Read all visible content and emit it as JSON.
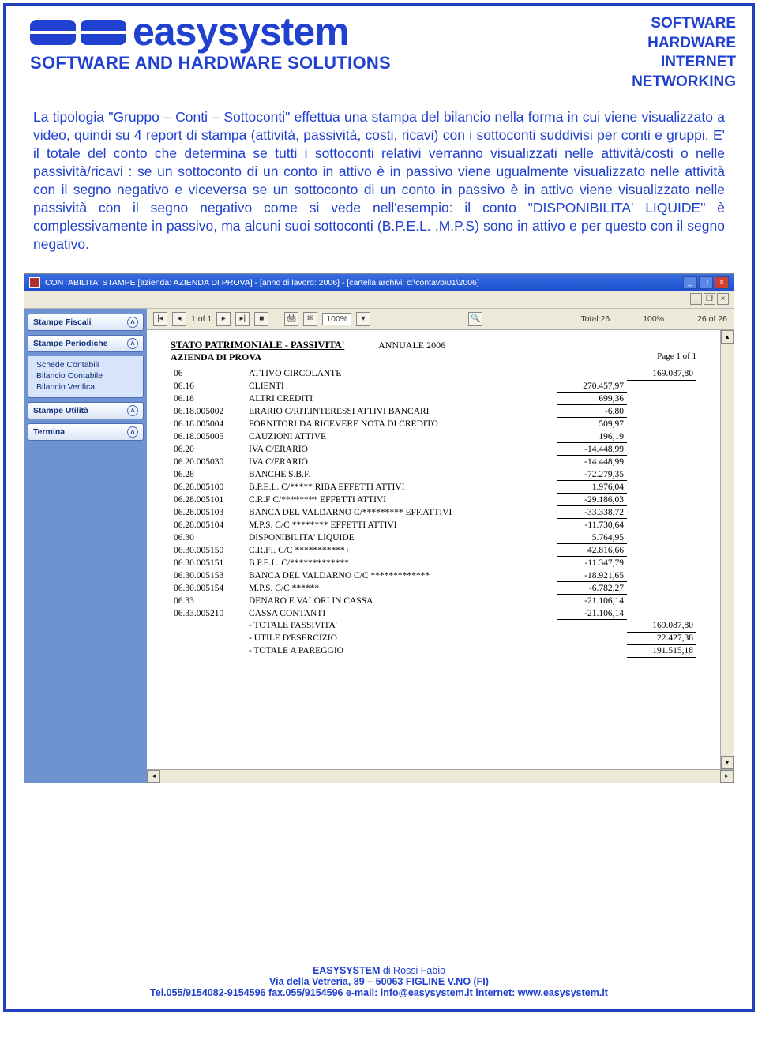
{
  "header": {
    "brand": "easysystem",
    "tagline": "SOFTWARE AND HARDWARE SOLUTIONS",
    "right": [
      "SOFTWARE",
      "HARDWARE",
      "INTERNET",
      "NETWORKING"
    ]
  },
  "paragraph": "La tipologia \"Gruppo – Conti – Sottoconti\" effettua una stampa del bilancio nella forma in cui viene visualizzato a video, quindi su 4 report di stampa (attività, passività, costi, ricavi) con i sottoconti suddivisi per conti e gruppi.\nE' il totale del conto che determina se tutti i sottoconti relativi verranno visualizzati nelle attività/costi o nelle passività/ricavi : se un sottoconto di un conto in attivo è in passivo viene ugualmente visualizzato nelle attività con il segno negativo e viceversa se un sottoconto di un conto in passivo è in attivo viene visualizzato nelle passività con il segno negativo come si vede nell'esempio: il conto \"DISPONIBILITA' LIQUIDE\" è complessivamente in passivo, ma alcuni suoi sottoconti (B.P.E.L. ,M.P.S) sono in attivo e per questo con il segno negativo.",
  "app": {
    "title": "CONTABILITA' STAMPE [azienda: AZIENDA DI PROVA] - [anno di lavoro: 2006] - [cartella archivi: c:\\contavb\\01\\2006]",
    "toolbar": {
      "page_of": "1 of 1",
      "zoom": "100%",
      "total_label": "Total:26",
      "pct": "100%",
      "of": "26 of 26"
    },
    "sidebar": {
      "groups": [
        {
          "title": "Stampe Fiscali",
          "items": []
        },
        {
          "title": "Stampe Periodiche",
          "items": [
            "Schede Contabili",
            "Bilancio Contabile",
            "Bilancio Verifica"
          ]
        },
        {
          "title": "Stampe Utilità",
          "items": []
        },
        {
          "title": "Termina",
          "items": []
        }
      ]
    },
    "report": {
      "heading": "STATO PATRIMONIALE - PASSIVITA'",
      "year": "ANNUALE 2006",
      "company": "AZIENDA DI PROVA",
      "pageno": "Page 1 of 1",
      "rows": [
        {
          "code": "06",
          "desc": "ATTIVO CIRCOLANTE",
          "v1": "",
          "v2": "169.087,80",
          "u1": false,
          "u2": true
        },
        {
          "code": "06.16",
          "desc": "CLIENTI",
          "v1": "",
          "v2": "270.457,97",
          "u1": false,
          "u2": true,
          "shift": true
        },
        {
          "code": "06.18",
          "desc": "ALTRI CREDITI",
          "v1": "",
          "v2": "699,36",
          "u1": false,
          "u2": true,
          "shift": true
        },
        {
          "code": "06.18.005002",
          "desc": "ERARIO C/RIT.INTERESSI ATTIVI BANCARI",
          "v1": "-6,80",
          "v2": "",
          "u1": true,
          "u2": false
        },
        {
          "code": "06.18.005004",
          "desc": "FORNITORI DA RICEVERE NOTA DI CREDITO",
          "v1": "509,97",
          "v2": "",
          "u1": true,
          "u2": false
        },
        {
          "code": "06.18.005005",
          "desc": "CAUZIONI ATTIVE",
          "v1": "196,19",
          "v2": "",
          "u1": true,
          "u2": false
        },
        {
          "code": "06.20",
          "desc": "IVA C/ERARIO",
          "v1": "",
          "v2": "-14.448,99",
          "u1": false,
          "u2": true,
          "shift": true
        },
        {
          "code": "06.20.005030",
          "desc": "IVA C/ERARIO",
          "v1": "-14.448,99",
          "v2": "",
          "u1": true,
          "u2": false
        },
        {
          "code": "06.28",
          "desc": "BANCHE S.B.F.",
          "v1": "",
          "v2": "-72.279,35",
          "u1": false,
          "u2": true,
          "shift": true
        },
        {
          "code": "06.28.005100",
          "desc": "B.P.E.L. C/***** RIBA EFFETTI ATTIVI",
          "v1": "1.976,04",
          "v2": "",
          "u1": true,
          "u2": false
        },
        {
          "code": "06.28.005101",
          "desc": "C.R.F C/******** EFFETTI ATTIVI",
          "v1": "-29.186,03",
          "v2": "",
          "u1": true,
          "u2": false
        },
        {
          "code": "06.28.005103",
          "desc": "BANCA DEL VALDARNO C/********* EFF.ATTIVI",
          "v1": "-33.338,72",
          "v2": "",
          "u1": true,
          "u2": false
        },
        {
          "code": "06.28.005104",
          "desc": "M.P.S. C/C ******** EFFETTI ATTIVI",
          "v1": "-11.730,64",
          "v2": "",
          "u1": true,
          "u2": false
        },
        {
          "code": "06.30",
          "desc": "DISPONIBILITA' LIQUIDE",
          "v1": "",
          "v2": "5.764,95",
          "u1": false,
          "u2": true,
          "shift": true
        },
        {
          "code": "06.30.005150",
          "desc": "C.R.FI. C/C ***********+",
          "v1": "42.816,66",
          "v2": "",
          "u1": true,
          "u2": false
        },
        {
          "code": "06.30.005151",
          "desc": "B.P.E.L. C/*************",
          "v1": "-11.347,79",
          "v2": "",
          "u1": true,
          "u2": false
        },
        {
          "code": "06.30.005153",
          "desc": "BANCA DEL VALDARNO C/C *************",
          "v1": "-18.921,65",
          "v2": "",
          "u1": true,
          "u2": false
        },
        {
          "code": "06.30.005154",
          "desc": "M.P.S. C/C ******",
          "v1": "-6.782,27",
          "v2": "",
          "u1": true,
          "u2": false
        },
        {
          "code": "06.33",
          "desc": "DENARO E VALORI IN CASSA",
          "v1": "",
          "v2": "-21.106,14",
          "u1": false,
          "u2": true,
          "shift": true
        },
        {
          "code": "06.33.005210",
          "desc": "CASSA CONTANTI",
          "v1": "-21.106,14",
          "v2": "",
          "u1": true,
          "u2": false
        },
        {
          "code": "",
          "desc": "- TOTALE PASSIVITA'",
          "v1": "",
          "v2": "169.087,80",
          "u1": false,
          "u2": true
        },
        {
          "code": "",
          "desc": "- UTILE D'ESERCIZIO",
          "v1": "",
          "v2": "22.427,38",
          "u1": false,
          "u2": true
        },
        {
          "code": "",
          "desc": "- TOTALE A PAREGGIO",
          "v1": "",
          "v2": "191.515,18",
          "u1": false,
          "u2": true
        }
      ]
    }
  },
  "footer": {
    "l1a": "EASYSYSTEM",
    "l1b": " di Rossi Fabio",
    "l2": "Via della Vetreria, 89 – 50063 FIGLINE V.NO (FI)",
    "l3a": "Tel.055/9154082-9154596 fax.055/9154596 e-mail: ",
    "email": "info@easysystem.it",
    "l3b": " internet: www.easysystem.it"
  }
}
